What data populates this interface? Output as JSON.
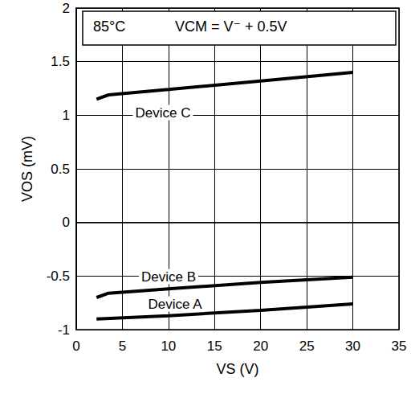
{
  "chart_data": {
    "type": "line",
    "annotations": [
      "85°C",
      "VCM = V⁻ + 0.5V"
    ],
    "x_label": "VS (V)",
    "y_label": "VOS (mV)",
    "xlim": [
      0,
      35
    ],
    "xticks": [
      0,
      5,
      10,
      15,
      20,
      25,
      30,
      35
    ],
    "ylim": [
      -1,
      2
    ],
    "yticks": [
      -1,
      -0.5,
      0,
      0.5,
      1,
      1.5,
      2
    ],
    "grid": true,
    "marker": "none",
    "line_style": "solid",
    "series": [
      {
        "name": "Device C",
        "color": "#000000",
        "x": [
          2.2,
          3.5,
          10,
          20,
          30
        ],
        "values": [
          1.15,
          1.19,
          1.24,
          1.32,
          1.4
        ]
      },
      {
        "name": "Device B",
        "color": "#000000",
        "x": [
          2.2,
          3.5,
          10,
          20,
          30
        ],
        "values": [
          -0.7,
          -0.66,
          -0.62,
          -0.56,
          -0.51
        ]
      },
      {
        "name": "Device A",
        "color": "#000000",
        "x": [
          2.2,
          10,
          20,
          30
        ],
        "values": [
          -0.9,
          -0.87,
          -0.82,
          -0.76
        ]
      }
    ]
  }
}
